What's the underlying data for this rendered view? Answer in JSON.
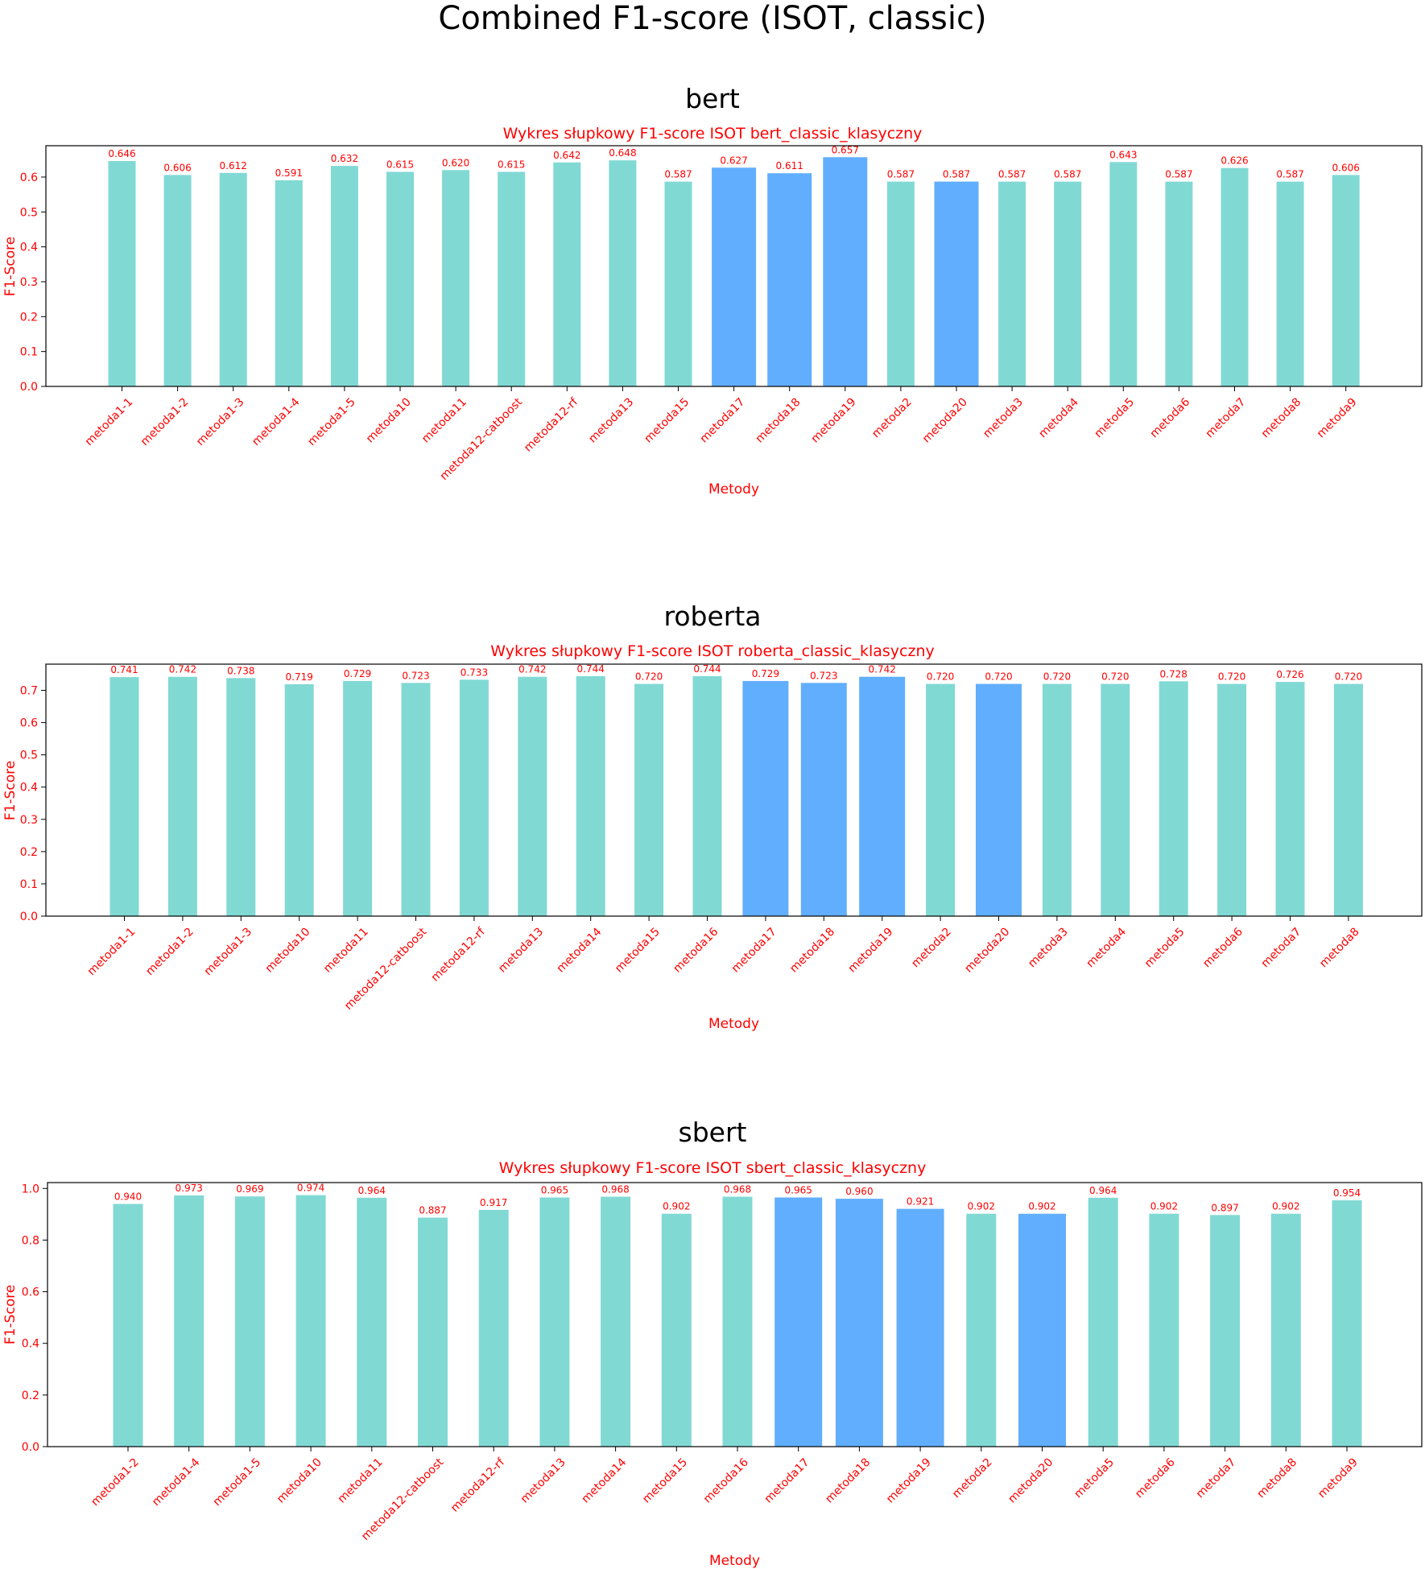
{
  "figure": {
    "suptitle": "Combined F1-score (ISOT, classic)"
  },
  "colors": {
    "bar_default": "#81d9d4",
    "bar_highlight": "#61aefe",
    "label_red": "#ff0000",
    "text_black": "#000000"
  },
  "chart_data": [
    {
      "type": "bar",
      "panel_title": "bert",
      "title": "Wykres słupkowy F1-score ISOT bert_classic_klasyczny",
      "xlabel": "Metody",
      "ylabel": "F1-Score",
      "ylim": [
        0,
        0.6899
      ],
      "yticks": [
        0.0,
        0.1,
        0.2,
        0.3,
        0.4,
        0.5,
        0.6
      ],
      "categories": [
        "metoda1-1",
        "metoda1-2",
        "metoda1-3",
        "metoda1-4",
        "metoda1-5",
        "metoda10",
        "metoda11",
        "metoda12-catboost",
        "metoda12-rf",
        "metoda13",
        "metoda15",
        "metoda17",
        "metoda18",
        "metoda19",
        "metoda2",
        "metoda20",
        "metoda3",
        "metoda4",
        "metoda5",
        "metoda6",
        "metoda7",
        "metoda8",
        "metoda9"
      ],
      "values": [
        0.646,
        0.606,
        0.612,
        0.591,
        0.632,
        0.615,
        0.62,
        0.615,
        0.642,
        0.648,
        0.587,
        0.627,
        0.611,
        0.657,
        0.587,
        0.587,
        0.587,
        0.587,
        0.643,
        0.587,
        0.626,
        0.587,
        0.606
      ],
      "value_labels": [
        "0.646",
        "0.606",
        "0.612",
        "0.591",
        "0.632",
        "0.615",
        "0.620",
        "0.615",
        "0.642",
        "0.648",
        "0.587",
        "0.627",
        "0.611",
        "0.657",
        "0.587",
        "0.587",
        "0.587",
        "0.587",
        "0.643",
        "0.587",
        "0.626",
        "0.587",
        "0.606"
      ],
      "highlighted": [
        "metoda17",
        "metoda18",
        "metoda19",
        "metoda20"
      ],
      "grid": false
    },
    {
      "type": "bar",
      "panel_title": "roberta",
      "title": "Wykres słupkowy F1-score ISOT roberta_classic_klasyczny",
      "xlabel": "Metody",
      "ylabel": "F1-Score",
      "ylim": [
        0,
        0.7812
      ],
      "yticks": [
        0.0,
        0.1,
        0.2,
        0.3,
        0.4,
        0.5,
        0.6,
        0.7
      ],
      "categories": [
        "metoda1-1",
        "metoda1-2",
        "metoda1-3",
        "metoda10",
        "metoda11",
        "metoda12-catboost",
        "metoda12-rf",
        "metoda13",
        "metoda14",
        "metoda15",
        "metoda16",
        "metoda17",
        "metoda18",
        "metoda19",
        "metoda2",
        "metoda20",
        "metoda3",
        "metoda4",
        "metoda5",
        "metoda6",
        "metoda7",
        "metoda8"
      ],
      "values": [
        0.741,
        0.742,
        0.738,
        0.719,
        0.729,
        0.723,
        0.733,
        0.742,
        0.744,
        0.72,
        0.744,
        0.729,
        0.723,
        0.742,
        0.72,
        0.72,
        0.72,
        0.72,
        0.728,
        0.72,
        0.726,
        0.72
      ],
      "value_labels": [
        "0.741",
        "0.742",
        "0.738",
        "0.719",
        "0.729",
        "0.723",
        "0.733",
        "0.742",
        "0.744",
        "0.720",
        "0.744",
        "0.729",
        "0.723",
        "0.742",
        "0.720",
        "0.720",
        "0.720",
        "0.720",
        "0.728",
        "0.720",
        "0.726",
        "0.720"
      ],
      "highlighted": [
        "metoda17",
        "metoda18",
        "metoda19",
        "metoda20"
      ],
      "grid": false
    },
    {
      "type": "bar",
      "panel_title": "sbert",
      "title": "Wykres słupkowy F1-score ISOT sbert_classic_klasyczny",
      "xlabel": "Metody",
      "ylabel": "F1-Score",
      "ylim": [
        0,
        1.0227
      ],
      "yticks": [
        0.0,
        0.2,
        0.4,
        0.6,
        0.8,
        1.0
      ],
      "categories": [
        "metoda1-2",
        "metoda1-4",
        "metoda1-5",
        "metoda10",
        "metoda11",
        "metoda12-catboost",
        "metoda12-rf",
        "metoda13",
        "metoda14",
        "metoda15",
        "metoda16",
        "metoda17",
        "metoda18",
        "metoda19",
        "metoda2",
        "metoda20",
        "metoda5",
        "metoda6",
        "metoda7",
        "metoda8",
        "metoda9"
      ],
      "values": [
        0.94,
        0.973,
        0.969,
        0.974,
        0.964,
        0.887,
        0.917,
        0.965,
        0.968,
        0.902,
        0.968,
        0.965,
        0.96,
        0.921,
        0.902,
        0.902,
        0.964,
        0.902,
        0.897,
        0.902,
        0.954
      ],
      "value_labels": [
        "0.940",
        "0.973",
        "0.969",
        "0.974",
        "0.964",
        "0.887",
        "0.917",
        "0.965",
        "0.968",
        "0.902",
        "0.968",
        "0.965",
        "0.960",
        "0.921",
        "0.902",
        "0.902",
        "0.964",
        "0.902",
        "0.897",
        "0.902",
        "0.954"
      ],
      "highlighted": [
        "metoda17",
        "metoda18",
        "metoda19",
        "metoda20"
      ],
      "grid": false
    }
  ]
}
